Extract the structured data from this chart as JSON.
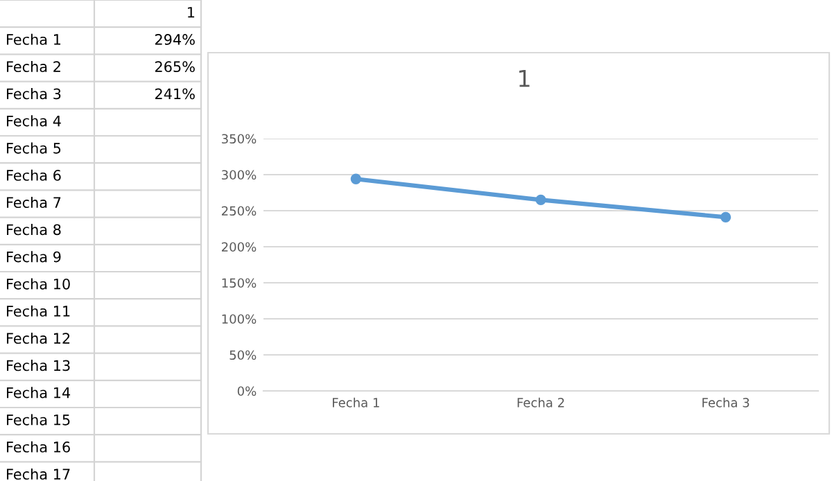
{
  "chart_data": {
    "type": "line",
    "title": "1",
    "categories": [
      "Fecha 1",
      "Fecha 2",
      "Fecha 3"
    ],
    "series": [
      {
        "name": "1",
        "color": "#5b9bd5",
        "values": [
          294,
          265,
          241
        ]
      }
    ],
    "ylim": [
      0,
      350
    ],
    "yticks": [
      {
        "value": 0,
        "label": "0%"
      },
      {
        "value": 50,
        "label": "50%"
      },
      {
        "value": 100,
        "label": "100%"
      },
      {
        "value": 150,
        "label": "150%"
      },
      {
        "value": 200,
        "label": "200%"
      },
      {
        "value": 250,
        "label": "250%"
      },
      {
        "value": 300,
        "label": "300%"
      },
      {
        "value": 350,
        "label": "350%"
      }
    ],
    "grid": "y",
    "marker": "circle",
    "line_style": "solid",
    "legend": false,
    "annotations": [
      "294%",
      "265%",
      "241%",
      "Fecha 4",
      "Fecha 5",
      "Fecha 6",
      "Fecha 7",
      "Fecha 8",
      "Fecha 9",
      "Fecha 10",
      "Fecha 11",
      "Fecha 12",
      "Fecha 13",
      "Fecha 14",
      "Fecha 15",
      "Fecha 16",
      "Fecha 17"
    ]
  }
}
